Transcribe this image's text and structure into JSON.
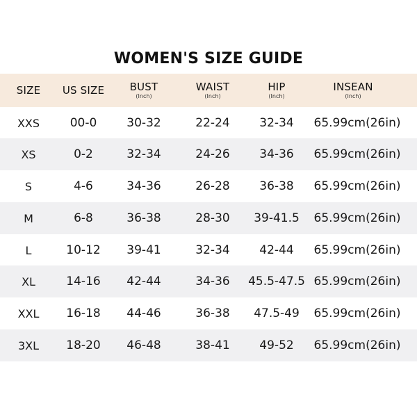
{
  "title": "WOMEN'S SIZE GUIDE",
  "colors": {
    "header_bg": "#f7eadd",
    "shaded_row_bg": "#f0f0f2",
    "text": "#111111"
  },
  "header": {
    "size": "SIZE",
    "us_size": "US SIZE",
    "bust": "BUST",
    "bust_unit": "(Inch)",
    "waist": "WAIST",
    "waist_unit": "(Inch)",
    "hip": "HIP",
    "hip_unit": "(Inch)",
    "insean": "INSEAN",
    "insean_unit": "(Inch)"
  },
  "rows": [
    {
      "size": "XXS",
      "us_size": "00-0",
      "bust": "30-32",
      "waist": "22-24",
      "hip": "32-34",
      "insean": "65.99cm(26in)"
    },
    {
      "size": "XS",
      "us_size": "0-2",
      "bust": "32-34",
      "waist": "24-26",
      "hip": "34-36",
      "insean": "65.99cm(26in)"
    },
    {
      "size": "S",
      "us_size": "4-6",
      "bust": "34-36",
      "waist": "26-28",
      "hip": "36-38",
      "insean": "65.99cm(26in)"
    },
    {
      "size": "M",
      "us_size": "6-8",
      "bust": "36-38",
      "waist": "28-30",
      "hip": "39-41.5",
      "insean": "65.99cm(26in)"
    },
    {
      "size": "L",
      "us_size": "10-12",
      "bust": "39-41",
      "waist": "32-34",
      "hip": "42-44",
      "insean": "65.99cm(26in)"
    },
    {
      "size": "XL",
      "us_size": "14-16",
      "bust": "42-44",
      "waist": "34-36",
      "hip": "45.5-47.5",
      "insean": "65.99cm(26in)"
    },
    {
      "size": "XXL",
      "us_size": "16-18",
      "bust": "44-46",
      "waist": "36-38",
      "hip": "47.5-49",
      "insean": "65.99cm(26in)"
    },
    {
      "size": "3XL",
      "us_size": "18-20",
      "bust": "46-48",
      "waist": "38-41",
      "hip": "49-52",
      "insean": "65.99cm(26in)"
    }
  ]
}
